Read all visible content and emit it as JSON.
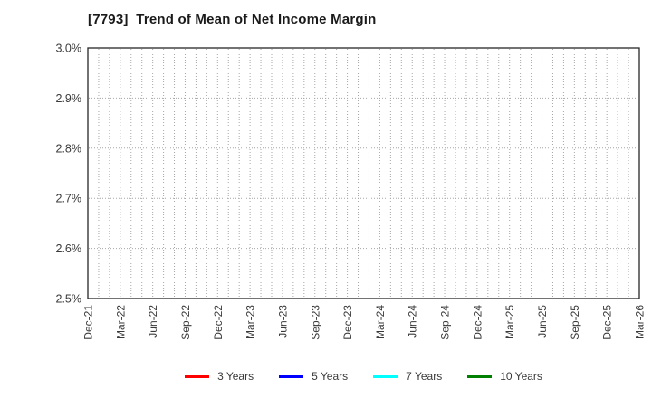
{
  "chart_data": {
    "type": "line",
    "title": "[7793]  Trend of Mean of Net Income Margin",
    "xlabel": "",
    "ylabel": "",
    "y_unit": "%",
    "ylim": [
      2.5,
      3.0
    ],
    "y_tick_labels": [
      "3.0%",
      "2.9%",
      "2.8%",
      "2.7%",
      "2.6%",
      "2.5%"
    ],
    "x_tick_labels": [
      "Dec-21",
      "Mar-22",
      "Jun-22",
      "Sep-22",
      "Dec-22",
      "Mar-23",
      "Jun-23",
      "Sep-23",
      "Dec-23",
      "Mar-24",
      "Jun-24",
      "Sep-24",
      "Dec-24",
      "Mar-25",
      "Jun-25",
      "Sep-25",
      "Dec-25",
      "Mar-26"
    ],
    "grid": {
      "style": "dotted",
      "vertical_interval": "monthly",
      "horizontal_interval": "0.1%"
    },
    "legend_position": "bottom center",
    "series": [
      {
        "name": "3 Years",
        "color": "#ff0000",
        "values": []
      },
      {
        "name": "5 Years",
        "color": "#0000ff",
        "values": []
      },
      {
        "name": "7 Years",
        "color": "#00ffff",
        "values": []
      },
      {
        "name": "10 Years",
        "color": "#008000",
        "values": []
      }
    ],
    "plot_is_empty": true
  },
  "colors": {
    "background": "#ffffff",
    "frame": "#262626",
    "grid": "#a6a6a6",
    "tick_text": "#3a3a3a",
    "title_text": "#1a1a1a"
  }
}
